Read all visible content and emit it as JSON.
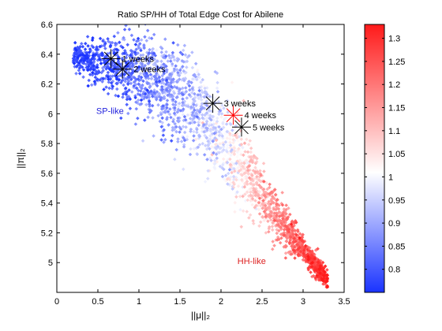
{
  "chart_data": {
    "type": "scatter",
    "title": "Ratio SP/HH of Total Edge Cost for Abilene",
    "xlabel": "||μ||₂",
    "ylabel": "||π||₂",
    "xlim": [
      0,
      3.5
    ],
    "ylim": [
      4.8,
      6.6
    ],
    "x_ticks": [
      "0",
      "0.5",
      "1",
      "1.5",
      "2",
      "2.5",
      "3",
      "3.5"
    ],
    "y_ticks": [
      "5",
      "5.2",
      "5.4",
      "5.6",
      "5.8",
      "6",
      "6.2",
      "6.4",
      "6.6"
    ],
    "grid": false,
    "color_variable": "ratio SP/HH",
    "colorbar": {
      "range": [
        0.75,
        1.33
      ],
      "ticks": [
        "0.8",
        "0.85",
        "0.9",
        "0.95",
        "1",
        "1.05",
        "1.1",
        "1.15",
        "1.2",
        "1.25",
        "1.3"
      ],
      "colors": {
        "low": "#1a33ff",
        "mid": "#ffffff",
        "high": "#ff1a1a"
      }
    },
    "point_cloud": {
      "n_points": 2400,
      "shape": "decreasing band from (0.2, 6.4) to (3.3, 4.87)",
      "center_curve": [
        [
          0.2,
          6.39
        ],
        [
          1.0,
          6.27
        ],
        [
          1.5,
          6.12
        ],
        [
          2.0,
          5.85
        ],
        [
          2.5,
          5.45
        ],
        [
          3.0,
          5.08
        ],
        [
          3.3,
          4.88
        ]
      ],
      "ratio_trend": [
        [
          0.2,
          0.78
        ],
        [
          1.0,
          0.85
        ],
        [
          2.0,
          0.97
        ],
        [
          2.5,
          1.1
        ],
        [
          3.0,
          1.22
        ],
        [
          3.3,
          1.3
        ]
      ]
    },
    "annotations": [
      {
        "label": "1 weeks",
        "x": 0.66,
        "y": 6.37,
        "marker_color": "#000000"
      },
      {
        "label": "2 weeks",
        "x": 0.8,
        "y": 6.3,
        "marker_color": "#000000"
      },
      {
        "label": "3 weeks",
        "x": 1.9,
        "y": 6.07,
        "marker_color": "#000000"
      },
      {
        "label": "4 weeks",
        "x": 2.15,
        "y": 5.99,
        "marker_color": "#ff0000"
      },
      {
        "label": "5 weeks",
        "x": 2.25,
        "y": 5.91,
        "marker_color": "#000000"
      }
    ],
    "region_labels": [
      {
        "label": "SP-like",
        "x": 0.48,
        "y": 6.0,
        "color": "#2222dd"
      },
      {
        "label": "HH-like",
        "x": 2.2,
        "y": 4.99,
        "color": "#dd2222"
      }
    ]
  }
}
